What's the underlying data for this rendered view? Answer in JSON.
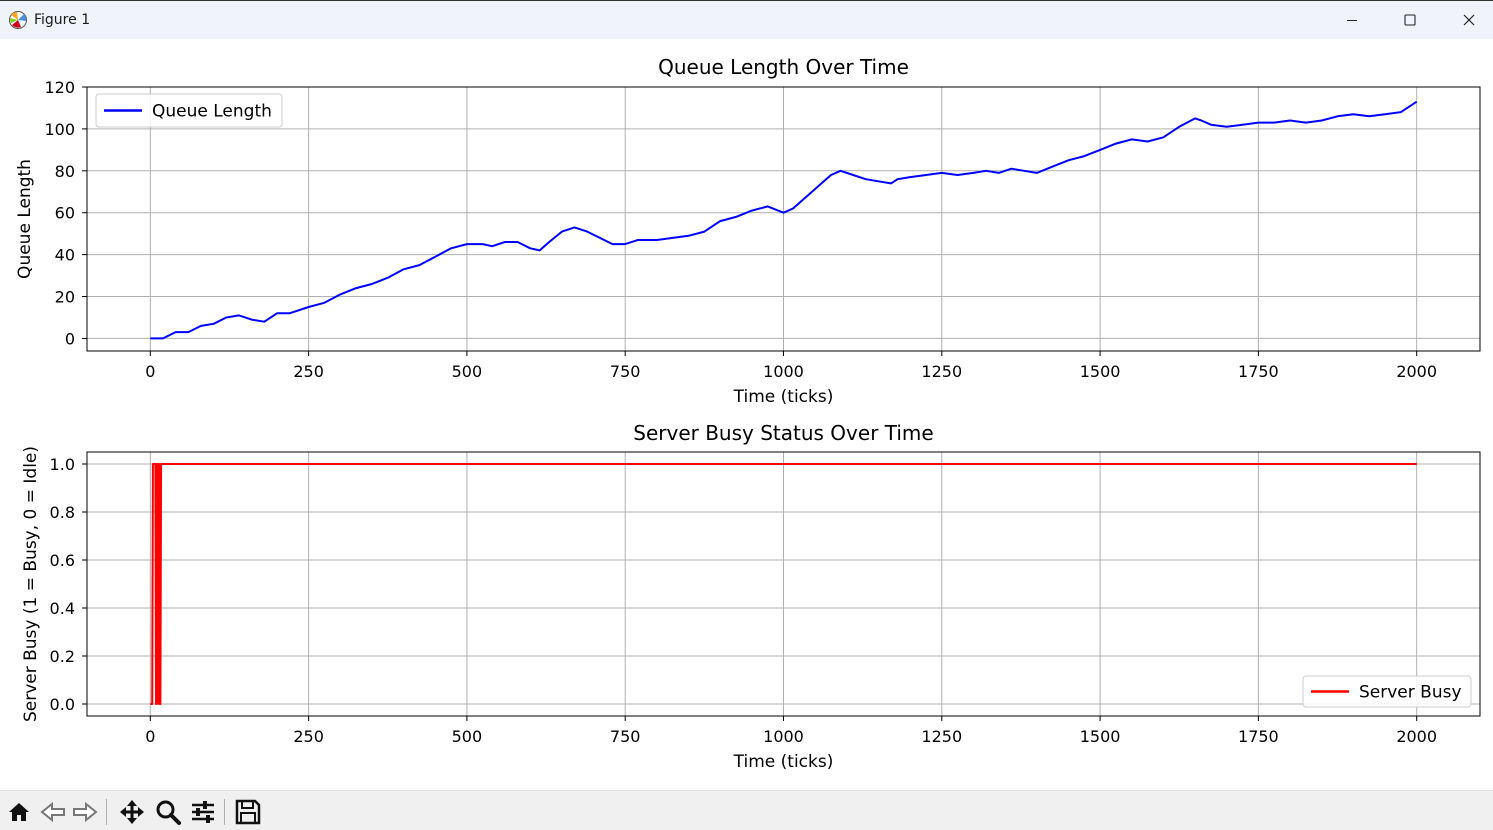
{
  "window": {
    "title": "Figure 1",
    "icon": "matplotlib-icon",
    "controls": [
      "minimize-icon",
      "maximize-icon",
      "close-icon"
    ]
  },
  "toolbar": {
    "buttons": [
      "home-icon",
      "back-icon",
      "forward-icon",
      "pan-icon",
      "zoom-icon",
      "configure-subplots-icon",
      "save-icon"
    ]
  },
  "colors": {
    "queue_line": "#0000ff",
    "busy_line": "#ff0000",
    "grid": "#b0b0b0"
  },
  "chart_data": [
    {
      "type": "line",
      "title": "Queue Length Over Time",
      "xlabel": "Time (ticks)",
      "ylabel": "Queue Length",
      "xlim": [
        -100,
        2100
      ],
      "ylim": [
        -6,
        120
      ],
      "xticks": [
        0,
        250,
        500,
        750,
        1000,
        1250,
        1500,
        1750,
        2000
      ],
      "yticks": [
        0,
        20,
        40,
        60,
        80,
        100,
        120
      ],
      "grid": true,
      "legend": "top-left",
      "series": [
        {
          "name": "Queue Length",
          "color": "#0000ff",
          "x": [
            0,
            20,
            40,
            60,
            80,
            100,
            120,
            140,
            160,
            180,
            200,
            220,
            250,
            275,
            300,
            325,
            350,
            375,
            400,
            425,
            450,
            475,
            500,
            525,
            540,
            560,
            580,
            600,
            615,
            630,
            650,
            670,
            690,
            710,
            730,
            750,
            770,
            800,
            825,
            850,
            875,
            900,
            925,
            950,
            975,
            1000,
            1015,
            1030,
            1045,
            1060,
            1075,
            1090,
            1110,
            1130,
            1150,
            1170,
            1180,
            1200,
            1225,
            1250,
            1275,
            1300,
            1320,
            1340,
            1360,
            1380,
            1400,
            1425,
            1450,
            1475,
            1500,
            1525,
            1550,
            1575,
            1600,
            1625,
            1650,
            1660,
            1675,
            1700,
            1725,
            1750,
            1775,
            1800,
            1825,
            1850,
            1875,
            1900,
            1925,
            1950,
            1975,
            1990,
            2000
          ],
          "values": [
            0,
            0,
            3,
            3,
            6,
            7,
            10,
            11,
            9,
            8,
            12,
            12,
            15,
            17,
            21,
            24,
            26,
            29,
            33,
            35,
            39,
            43,
            45,
            45,
            44,
            46,
            46,
            43,
            42,
            46,
            51,
            53,
            51,
            48,
            45,
            45,
            47,
            47,
            48,
            49,
            51,
            56,
            58,
            61,
            63,
            60,
            62,
            66,
            70,
            74,
            78,
            80,
            78,
            76,
            75,
            74,
            76,
            77,
            78,
            79,
            78,
            79,
            80,
            79,
            81,
            80,
            79,
            82,
            85,
            87,
            90,
            93,
            95,
            94,
            96,
            101,
            105,
            104,
            102,
            101,
            102,
            103,
            103,
            104,
            103,
            104,
            106,
            107,
            106,
            107,
            108,
            111,
            113
          ]
        }
      ]
    },
    {
      "type": "line",
      "title": "Server Busy Status Over Time",
      "xlabel": "Time (ticks)",
      "ylabel": "Server Busy (1 = Busy, 0 = Idle)",
      "xlim": [
        -100,
        2100
      ],
      "ylim": [
        -0.05,
        1.05
      ],
      "xticks": [
        0,
        250,
        500,
        750,
        1000,
        1250,
        1500,
        1750,
        2000
      ],
      "yticks": [
        0.0,
        0.2,
        0.4,
        0.6,
        0.8,
        1.0
      ],
      "grid": true,
      "legend": "bottom-right",
      "series": [
        {
          "name": "Server Busy",
          "color": "#ff0000",
          "x": [
            0,
            3,
            4,
            8,
            9,
            10,
            11,
            12,
            13,
            14,
            15,
            16,
            17,
            2000
          ],
          "values": [
            0,
            0,
            1,
            1,
            0,
            1,
            1,
            0,
            1,
            1,
            0,
            0,
            1,
            1
          ]
        }
      ]
    }
  ]
}
